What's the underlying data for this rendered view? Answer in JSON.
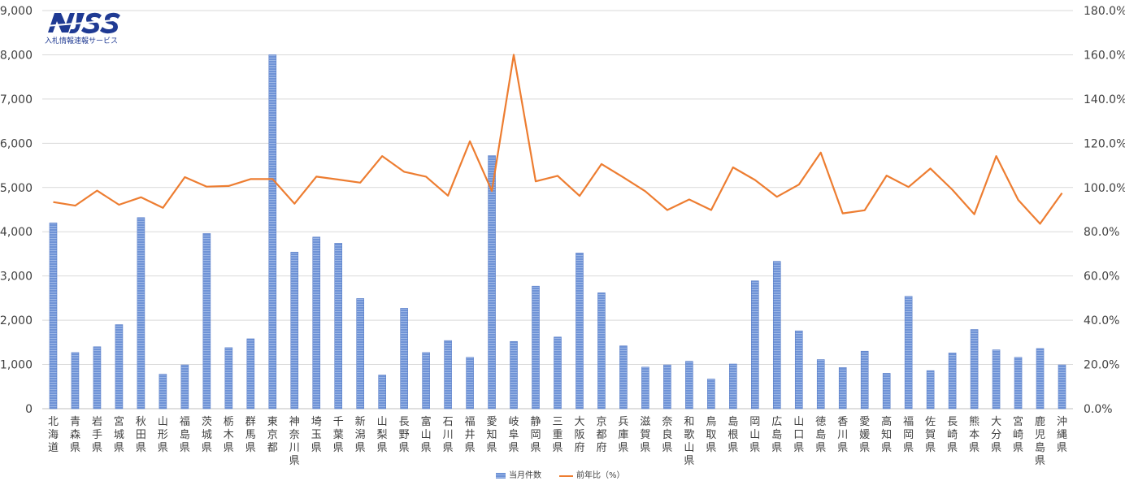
{
  "logo": {
    "mark": "NJSS",
    "subtitle": "入札情報速報サービス"
  },
  "colors": {
    "bar": "#6f93d6",
    "bar_stripe": "#9cb6e6",
    "line": "#ed7d31",
    "grid": "#d9d9d9",
    "text": "#404040"
  },
  "chart_data": {
    "type": "bar",
    "categories": [
      "北海道",
      "青森県",
      "岩手県",
      "宮城県",
      "秋田県",
      "山形県",
      "福島県",
      "茨城県",
      "栃木県",
      "群馬県",
      "東京都",
      "神奈川県",
      "埼玉県",
      "千葉県",
      "新潟県",
      "山梨県",
      "長野県",
      "富山県",
      "石川県",
      "福井県",
      "愛知県",
      "岐阜県",
      "静岡県",
      "三重県",
      "大阪府",
      "京都府",
      "兵庫県",
      "滋賀県",
      "奈良県",
      "和歌山県",
      "鳥取県",
      "島根県",
      "岡山県",
      "広島県",
      "山口県",
      "徳島県",
      "香川県",
      "愛媛県",
      "高知県",
      "福岡県",
      "佐賀県",
      "長崎県",
      "熊本県",
      "大分県",
      "宮崎県",
      "鹿児島県",
      "沖縄県"
    ],
    "series": [
      {
        "name": "当月件数",
        "type": "bar",
        "axis": "left",
        "values": [
          4200,
          1270,
          1400,
          1900,
          4320,
          780,
          990,
          3960,
          1380,
          1580,
          8000,
          3540,
          3880,
          3740,
          2490,
          760,
          2270,
          1270,
          1540,
          1160,
          5720,
          1520,
          2770,
          1620,
          3520,
          2620,
          1420,
          940,
          990,
          1070,
          670,
          1010,
          2890,
          3330,
          1760,
          1110,
          930,
          1300,
          800,
          2540,
          860,
          1260,
          1790,
          1330,
          1160,
          1360,
          990
        ]
      },
      {
        "name": "前年比（%）",
        "type": "line",
        "axis": "right",
        "values": [
          93.4,
          91.8,
          98.6,
          92.2,
          95.6,
          90.8,
          104.7,
          100.4,
          100.7,
          103.8,
          103.8,
          92.7,
          104.9,
          103.6,
          102.2,
          114.2,
          107.1,
          104.9,
          96.3,
          120.9,
          98.4,
          160.0,
          102.8,
          105.3,
          96.2,
          110.6,
          104.6,
          98.3,
          89.8,
          94.6,
          89.8,
          109.1,
          103.4,
          95.8,
          101.3,
          115.8,
          88.3,
          89.7,
          105.4,
          100.2,
          108.6,
          99.0,
          87.9,
          114.2,
          94.4,
          83.6,
          97.5
        ]
      }
    ],
    "y_left": {
      "min": 0,
      "max": 9000,
      "step": 1000,
      "tick_labels": [
        "0",
        "1,000",
        "2,000",
        "3,000",
        "4,000",
        "5,000",
        "6,000",
        "7,000",
        "8,000",
        "9,000"
      ]
    },
    "y_right": {
      "min": 0,
      "max": 180,
      "step": 20,
      "tick_labels": [
        "0.0%",
        "20.0%",
        "40.0%",
        "60.0%",
        "80.0%",
        "100.0%",
        "120.0%",
        "140.0%",
        "160.0%",
        "180.0%"
      ]
    },
    "grid": true,
    "legend": {
      "position": "bottom",
      "items": [
        "当月件数",
        "前年比（%）"
      ]
    }
  }
}
